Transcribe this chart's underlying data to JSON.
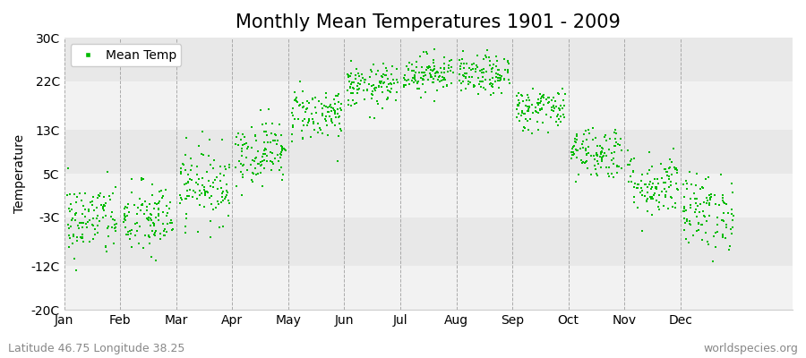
{
  "title": "Monthly Mean Temperatures 1901 - 2009",
  "ylabel": "Temperature",
  "yticks": [
    -20,
    -12,
    -3,
    5,
    13,
    22,
    30
  ],
  "ytick_labels": [
    "-20C",
    "-12C",
    "-3C",
    "5C",
    "13C",
    "22C",
    "30C"
  ],
  "ylim": [
    -20,
    30
  ],
  "months": [
    "Jan",
    "Feb",
    "Mar",
    "Apr",
    "May",
    "Jun",
    "Jul",
    "Aug",
    "Sep",
    "Oct",
    "Nov",
    "Dec"
  ],
  "mean_temps": [
    -3.5,
    -3.5,
    3,
    9,
    16,
    21,
    23.5,
    23,
    17,
    9,
    3,
    -2
  ],
  "std_temps": [
    3.5,
    3.5,
    3.5,
    3,
    2.5,
    2,
    1.8,
    1.8,
    2,
    2.5,
    3,
    3.5
  ],
  "n_years": 109,
  "dot_color": "#00bb00",
  "dot_size": 3,
  "background_color": "#ffffff",
  "plot_bg_light": "#f2f2f2",
  "plot_bg_dark": "#e8e8e8",
  "grid_line_color": "#999999",
  "subtitle_left": "Latitude 46.75 Longitude 38.25",
  "subtitle_right": "worldspecies.org",
  "legend_label": "Mean Temp",
  "title_fontsize": 15,
  "axis_fontsize": 10,
  "label_fontsize": 9
}
